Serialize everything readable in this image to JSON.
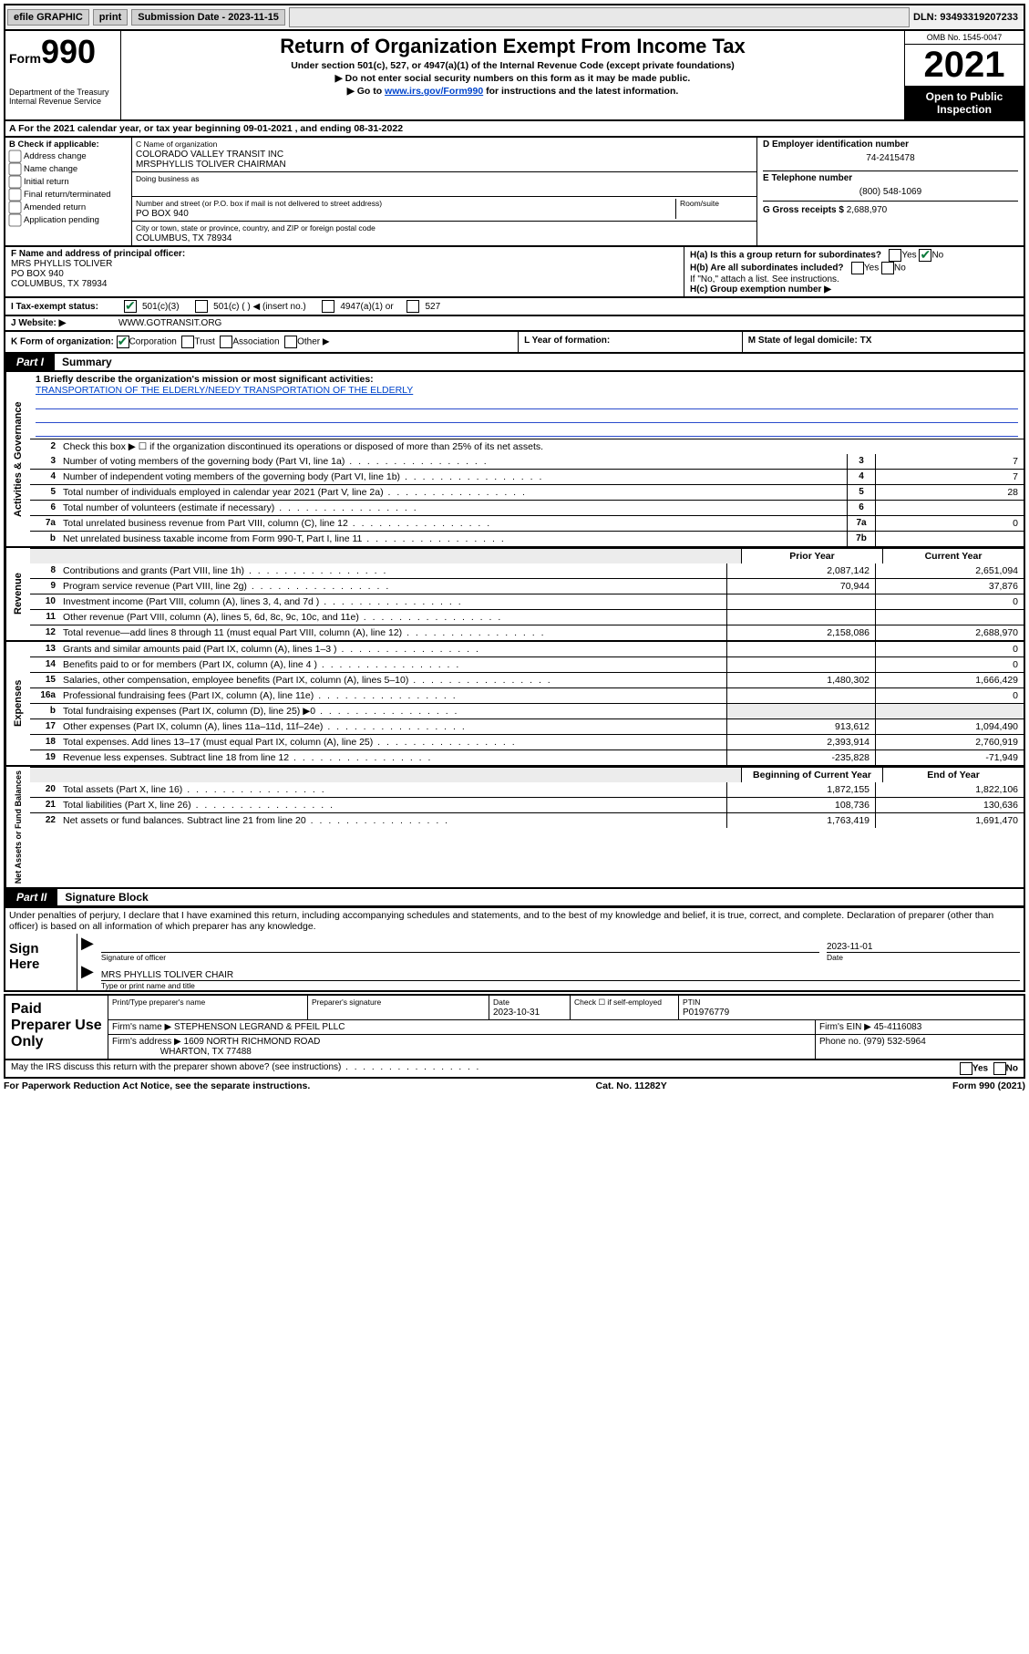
{
  "topbar": {
    "efile": "efile GRAPHIC",
    "print": "print",
    "sub_label": "Submission Date - 2023-11-15",
    "dln": "DLN: 93493319207233"
  },
  "header": {
    "form_prefix": "Form",
    "form_num": "990",
    "dept": "Department of the Treasury\nInternal Revenue Service",
    "title": "Return of Organization Exempt From Income Tax",
    "subtitle": "Under section 501(c), 527, or 4947(a)(1) of the Internal Revenue Code (except private foundations)",
    "note1": "▶ Do not enter social security numbers on this form as it may be made public.",
    "note2_pre": "▶ Go to ",
    "note2_link": "www.irs.gov/Form990",
    "note2_post": " for instructions and the latest information.",
    "omb": "OMB No. 1545-0047",
    "year": "2021",
    "inspect": "Open to Public Inspection"
  },
  "period": {
    "text": "A For the 2021 calendar year, or tax year beginning 09-01-2021   , and ending 08-31-2022"
  },
  "boxB": {
    "label": "B Check if applicable:",
    "opts": [
      "Address change",
      "Name change",
      "Initial return",
      "Final return/terminated",
      "Amended return",
      "Application pending"
    ]
  },
  "boxC": {
    "name_lbl": "C Name of organization",
    "name1": "COLORADO VALLEY TRANSIT INC",
    "name2": "MRSPHYLLIS TOLIVER CHAIRMAN",
    "dba_lbl": "Doing business as",
    "addr_lbl": "Number and street (or P.O. box if mail is not delivered to street address)",
    "room_lbl": "Room/suite",
    "addr": "PO BOX 940",
    "city_lbl": "City or town, state or province, country, and ZIP or foreign postal code",
    "city": "COLUMBUS, TX  78934"
  },
  "boxD": {
    "lbl": "D Employer identification number",
    "val": "74-2415478"
  },
  "boxE": {
    "lbl": "E Telephone number",
    "val": "(800) 548-1069"
  },
  "boxG": {
    "lbl": "G Gross receipts $",
    "val": "2,688,970"
  },
  "boxF": {
    "lbl": "F Name and address of principal officer:",
    "name": "MRS PHYLLIS TOLIVER",
    "addr1": "PO BOX 940",
    "addr2": "COLUMBUS, TX  78934"
  },
  "boxH": {
    "ha": "H(a)  Is this a group return for subordinates?",
    "hb": "H(b)  Are all subordinates included?",
    "hnote": "If \"No,\" attach a list. See instructions.",
    "hc": "H(c)  Group exemption number ▶",
    "ha_no": true
  },
  "rowI": {
    "lbl": "I    Tax-exempt status:",
    "c1": "501(c)(3)",
    "c2": "501(c) (  ) ◀ (insert no.)",
    "c3": "4947(a)(1) or",
    "c4": "527"
  },
  "rowJ": {
    "lbl": "J    Website: ▶",
    "val": "WWW.GOTRANSIT.ORG"
  },
  "rowK": {
    "lbl": "K Form of organization:",
    "opts": [
      "Corporation",
      "Trust",
      "Association",
      "Other ▶"
    ],
    "checked": 0
  },
  "rowL": {
    "lbl": "L Year of formation:"
  },
  "rowM": {
    "lbl": "M State of legal domicile: TX"
  },
  "parts": {
    "p1_tag": "Part I",
    "p1_title": "Summary",
    "p2_tag": "Part II",
    "p2_title": "Signature Block"
  },
  "mission": {
    "q": "1   Briefly describe the organization's mission or most significant activities:",
    "text": "TRANSPORTATION OF THE ELDERLY/NEEDY TRANSPORTATION OF THE ELDERLY"
  },
  "gov": {
    "l2": "Check this box ▶ ☐  if the organization discontinued its operations or disposed of more than 25% of its net assets.",
    "rows": [
      {
        "n": "2",
        "box": "",
        "t": ""
      },
      {
        "n": "3",
        "t": "Number of voting members of the governing body (Part VI, line 1a)",
        "box": "3",
        "v": "7"
      },
      {
        "n": "4",
        "t": "Number of independent voting members of the governing body (Part VI, line 1b)",
        "box": "4",
        "v": "7"
      },
      {
        "n": "5",
        "t": "Total number of individuals employed in calendar year 2021 (Part V, line 2a)",
        "box": "5",
        "v": "28"
      },
      {
        "n": "6",
        "t": "Total number of volunteers (estimate if necessary)",
        "box": "6",
        "v": ""
      },
      {
        "n": "7a",
        "t": "Total unrelated business revenue from Part VIII, column (C), line 12",
        "box": "7a",
        "v": "0"
      },
      {
        "n": "b",
        "t": "Net unrelated business taxable income from Form 990-T, Part I, line 11",
        "box": "7b",
        "v": ""
      }
    ]
  },
  "twocol_hdr_prior": "Prior Year",
  "twocol_hdr_curr": "Current Year",
  "revenue": [
    {
      "n": "8",
      "t": "Contributions and grants (Part VIII, line 1h)",
      "p": "2,087,142",
      "c": "2,651,094"
    },
    {
      "n": "9",
      "t": "Program service revenue (Part VIII, line 2g)",
      "p": "70,944",
      "c": "37,876"
    },
    {
      "n": "10",
      "t": "Investment income (Part VIII, column (A), lines 3, 4, and 7d )",
      "p": "",
      "c": "0"
    },
    {
      "n": "11",
      "t": "Other revenue (Part VIII, column (A), lines 5, 6d, 8c, 9c, 10c, and 11e)",
      "p": "",
      "c": ""
    },
    {
      "n": "12",
      "t": "Total revenue—add lines 8 through 11 (must equal Part VIII, column (A), line 12)",
      "p": "2,158,086",
      "c": "2,688,970"
    }
  ],
  "expenses": [
    {
      "n": "13",
      "t": "Grants and similar amounts paid (Part IX, column (A), lines 1–3 )",
      "p": "",
      "c": "0"
    },
    {
      "n": "14",
      "t": "Benefits paid to or for members (Part IX, column (A), line 4 )",
      "p": "",
      "c": "0"
    },
    {
      "n": "15",
      "t": "Salaries, other compensation, employee benefits (Part IX, column (A), lines 5–10)",
      "p": "1,480,302",
      "c": "1,666,429"
    },
    {
      "n": "16a",
      "t": "Professional fundraising fees (Part IX, column (A), line 11e)",
      "p": "",
      "c": "0"
    },
    {
      "n": "b",
      "t": "Total fundraising expenses (Part IX, column (D), line 25) ▶0",
      "p": "SHADE",
      "c": "SHADE"
    },
    {
      "n": "17",
      "t": "Other expenses (Part IX, column (A), lines 11a–11d, 11f–24e)",
      "p": "913,612",
      "c": "1,094,490"
    },
    {
      "n": "18",
      "t": "Total expenses. Add lines 13–17 (must equal Part IX, column (A), line 25)",
      "p": "2,393,914",
      "c": "2,760,919"
    },
    {
      "n": "19",
      "t": "Revenue less expenses. Subtract line 18 from line 12",
      "p": "-235,828",
      "c": "-71,949"
    }
  ],
  "nab_hdr_begin": "Beginning of Current Year",
  "nab_hdr_end": "End of Year",
  "netassets": [
    {
      "n": "20",
      "t": "Total assets (Part X, line 16)",
      "p": "1,872,155",
      "c": "1,822,106"
    },
    {
      "n": "21",
      "t": "Total liabilities (Part X, line 26)",
      "p": "108,736",
      "c": "130,636"
    },
    {
      "n": "22",
      "t": "Net assets or fund balances. Subtract line 21 from line 20",
      "p": "1,763,419",
      "c": "1,691,470"
    }
  ],
  "declare": "Under penalties of perjury, I declare that I have examined this return, including accompanying schedules and statements, and to the best of my knowledge and belief, it is true, correct, and complete. Declaration of preparer (other than officer) is based on all information of which preparer has any knowledge.",
  "sign": {
    "lbl": "Sign Here",
    "sig_cap": "Signature of officer",
    "date": "2023-11-01",
    "date_cap": "Date",
    "name": "MRS PHYLLIS TOLIVER  CHAIR",
    "name_cap": "Type or print name and title"
  },
  "paid": {
    "lbl": "Paid Preparer Use Only",
    "h1": "Print/Type preparer's name",
    "h2": "Preparer's signature",
    "h3": "Date",
    "date": "2023-10-31",
    "h4": "Check ☐ if self-employed",
    "h5": "PTIN",
    "ptin": "P01976779",
    "firm_lbl": "Firm's name    ▶",
    "firm": "STEPHENSON LEGRAND & PFEIL PLLC",
    "ein_lbl": "Firm's EIN ▶",
    "ein": "45-4116083",
    "addr_lbl": "Firm's address ▶",
    "addr1": "1609 NORTH RICHMOND ROAD",
    "addr2": "WHARTON, TX  77488",
    "ph_lbl": "Phone no.",
    "ph": "(979) 532-5964"
  },
  "discuss": "May the IRS discuss this return with the preparer shown above? (see instructions)",
  "foot": {
    "l": "For Paperwork Reduction Act Notice, see the separate instructions.",
    "c": "Cat. No. 11282Y",
    "r": "Form 990 (2021)"
  }
}
